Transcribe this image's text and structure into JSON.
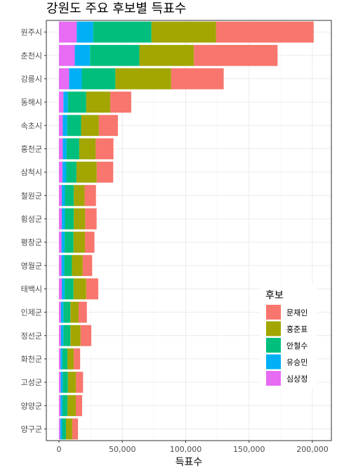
{
  "chart_data": {
    "type": "bar",
    "orientation": "horizontal",
    "stacked": true,
    "title": "강원도 주요 후보별 득표수",
    "xlabel": "득표수",
    "ylabel": "",
    "xlim": [
      0,
      205000
    ],
    "xticks": [
      0,
      50000,
      100000,
      150000,
      200000
    ],
    "xtick_labels": [
      "0",
      "50,000",
      "100,000",
      "150,000",
      "200,000"
    ],
    "grid": true,
    "legend_title": "후보",
    "legend_position": "right",
    "categories": [
      "원주시",
      "춘천시",
      "강릉시",
      "동해시",
      "속초시",
      "홍천군",
      "삼척시",
      "철원군",
      "횡성군",
      "평창군",
      "영월군",
      "태백시",
      "인제군",
      "정선군",
      "화천군",
      "고성군",
      "양양군",
      "양구군"
    ],
    "series": [
      {
        "name": "심상정",
        "color": "#E76BF3",
        "values": [
          14000,
          12500,
          8000,
          3500,
          3000,
          3000,
          2800,
          2200,
          2200,
          2000,
          2000,
          2200,
          1500,
          1500,
          1200,
          1300,
          1200,
          1000
        ]
      },
      {
        "name": "유승민",
        "color": "#00B0F6",
        "values": [
          13000,
          12000,
          10000,
          3500,
          3500,
          3000,
          3000,
          2500,
          2500,
          2500,
          2200,
          2300,
          2000,
          2000,
          1500,
          1700,
          1600,
          1500
        ]
      },
      {
        "name": "안철수",
        "color": "#00BF7D",
        "values": [
          46000,
          39000,
          26500,
          14500,
          11000,
          10000,
          8000,
          7000,
          7000,
          7000,
          6000,
          7000,
          5500,
          5500,
          4000,
          4000,
          4000,
          3000
        ]
      },
      {
        "name": "홍준표",
        "color": "#A3A500",
        "values": [
          51000,
          43000,
          44000,
          19000,
          14000,
          13000,
          16000,
          8500,
          9000,
          9000,
          8500,
          10000,
          6500,
          8000,
          5000,
          6500,
          6500,
          5000
        ]
      },
      {
        "name": "문재인",
        "color": "#F8766D",
        "values": [
          77000,
          66000,
          41500,
          16500,
          15000,
          14000,
          13000,
          9000,
          9000,
          7500,
          7500,
          9500,
          6500,
          8500,
          5000,
          5500,
          5000,
          4500
        ]
      }
    ],
    "legend_order": [
      "문재인",
      "홍준표",
      "안철수",
      "유승민",
      "심상정"
    ]
  }
}
